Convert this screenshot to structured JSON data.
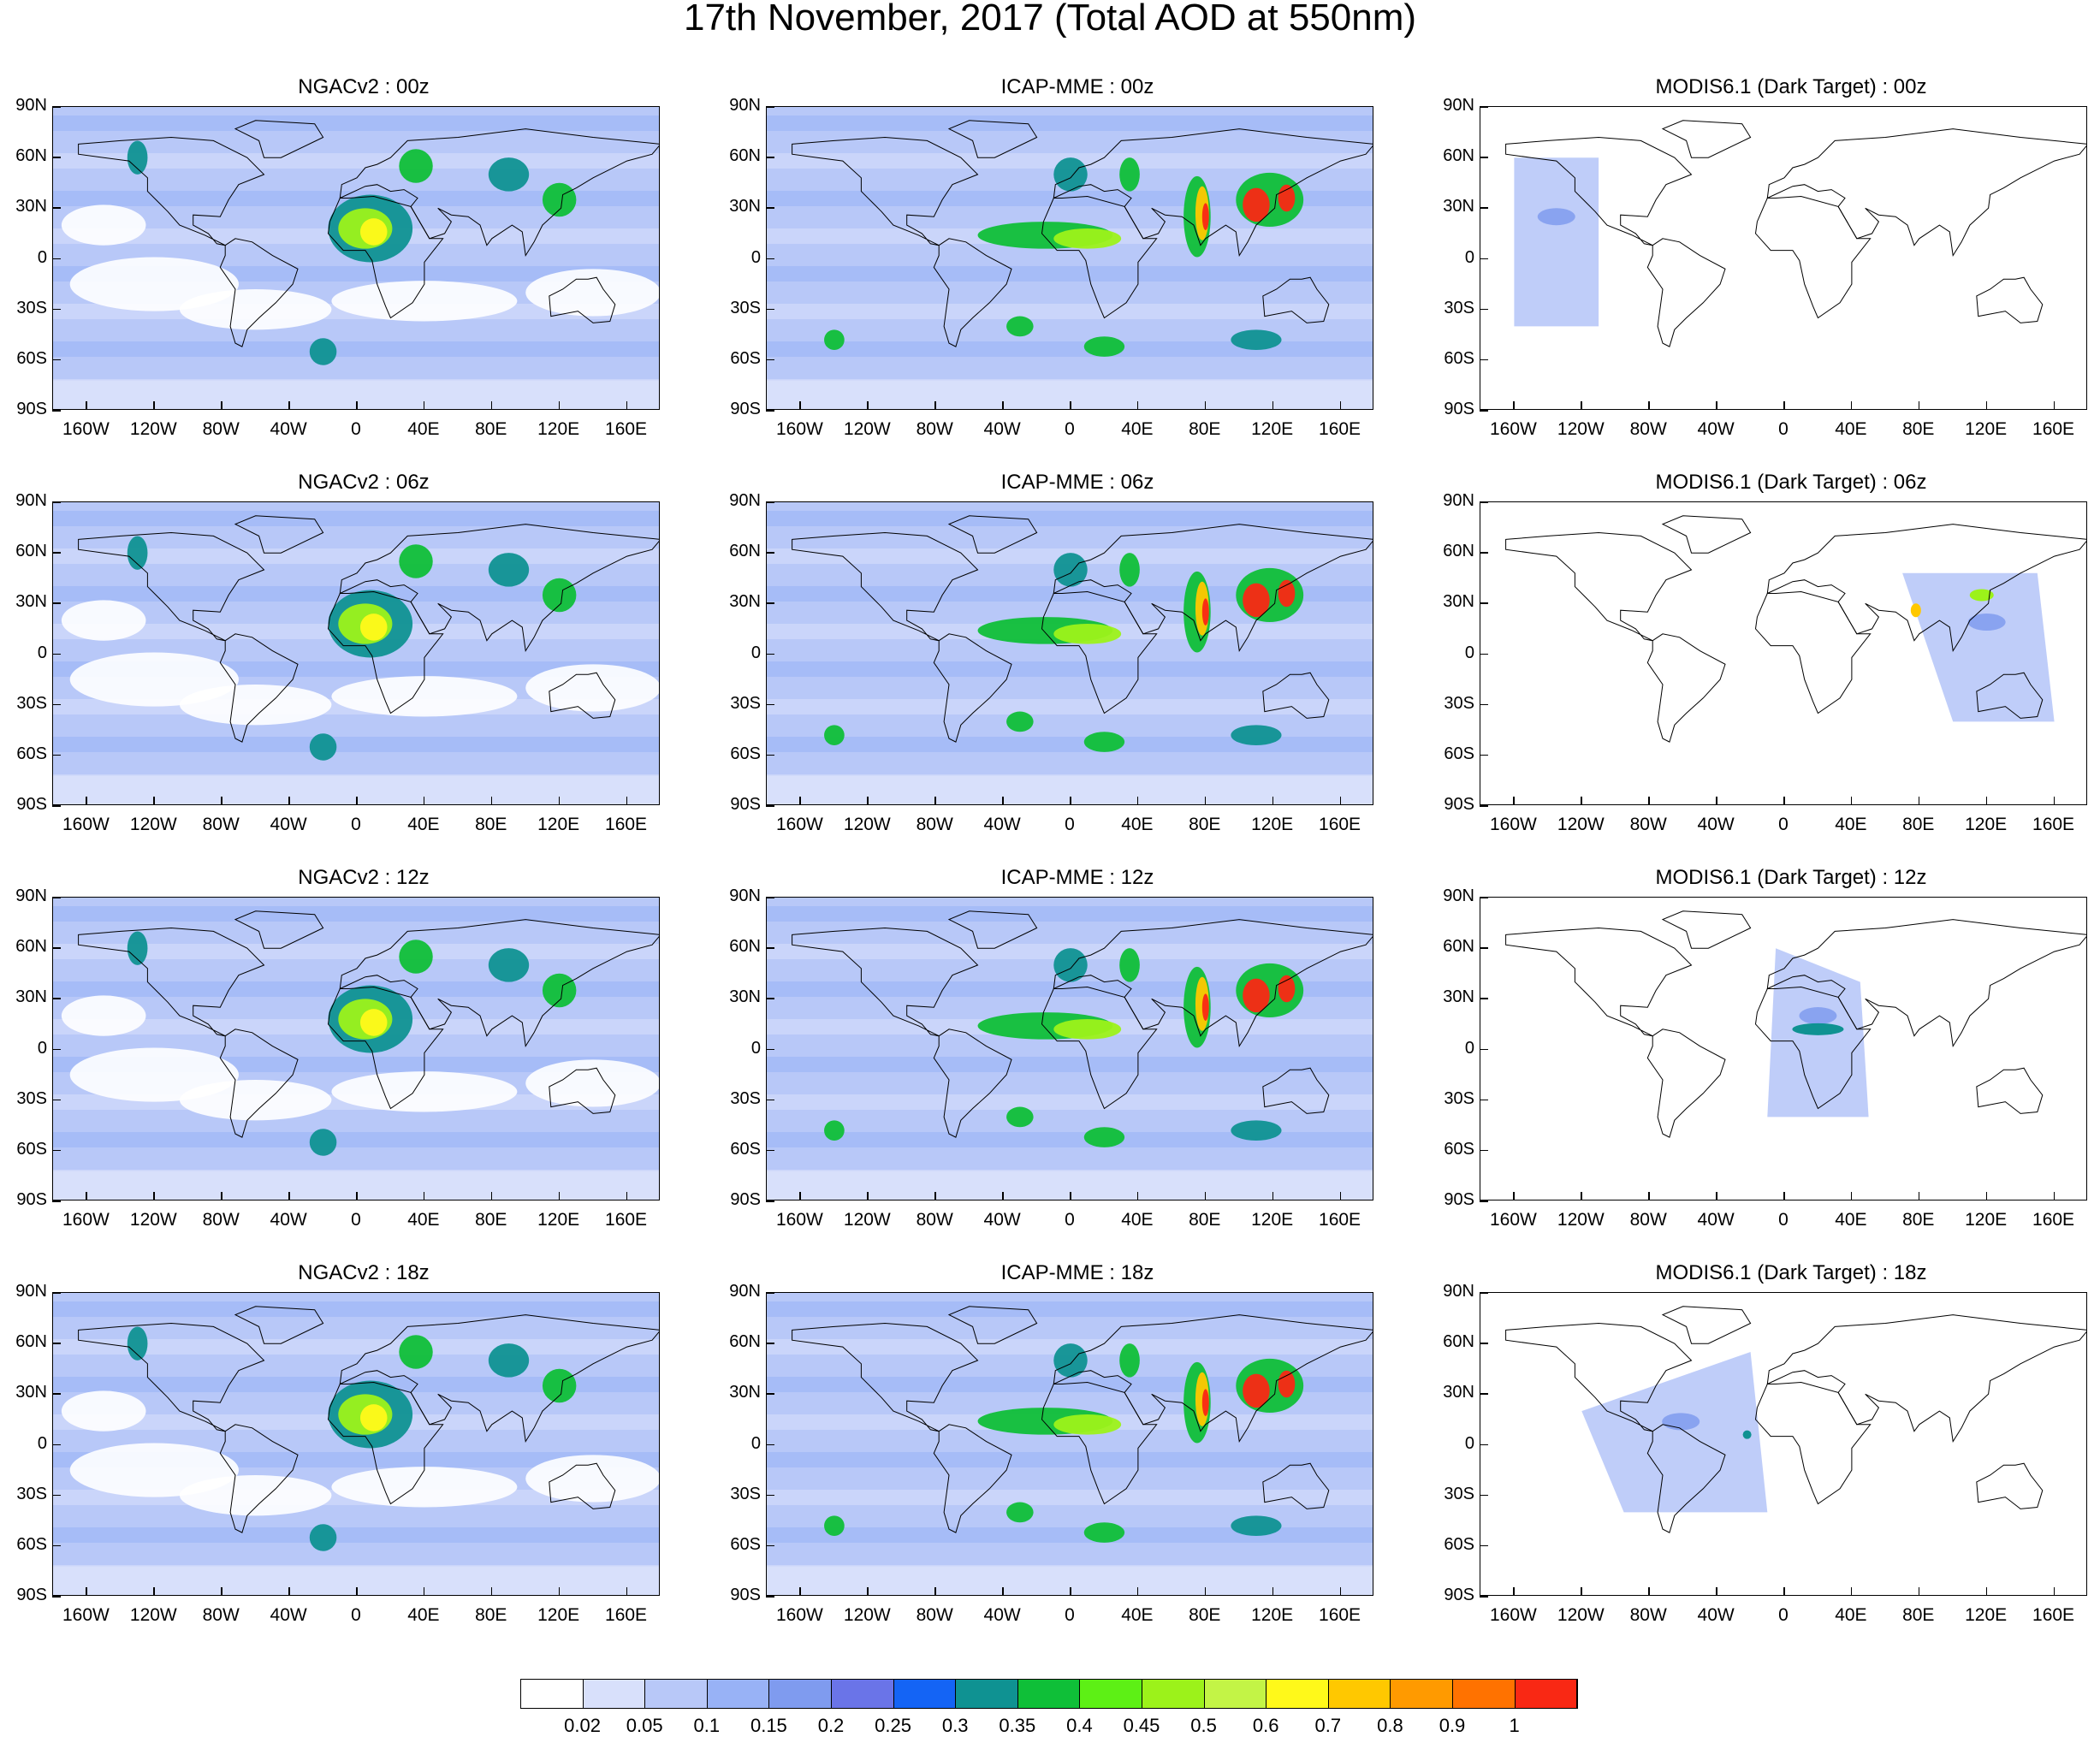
{
  "title": "17th November, 2017 (Total AOD at 550nm)",
  "panels": [
    {
      "title": "NGACv2 : 00z",
      "kind": "ngac"
    },
    {
      "title": "ICAP-MME : 00z",
      "kind": "icap"
    },
    {
      "title": "MODIS6.1 (Dark Target) : 00z",
      "kind": "modis",
      "swath": "00"
    },
    {
      "title": "NGACv2 : 06z",
      "kind": "ngac"
    },
    {
      "title": "ICAP-MME : 06z",
      "kind": "icap"
    },
    {
      "title": "MODIS6.1 (Dark Target) : 06z",
      "kind": "modis",
      "swath": "06"
    },
    {
      "title": "NGACv2 : 12z",
      "kind": "ngac"
    },
    {
      "title": "ICAP-MME : 12z",
      "kind": "icap"
    },
    {
      "title": "MODIS6.1 (Dark Target) : 12z",
      "kind": "modis",
      "swath": "12"
    },
    {
      "title": "NGACv2 : 18z",
      "kind": "ngac"
    },
    {
      "title": "ICAP-MME : 18z",
      "kind": "icap"
    },
    {
      "title": "MODIS6.1 (Dark Target) : 18z",
      "kind": "modis",
      "swath": "18"
    }
  ],
  "lat_labels": [
    "90N",
    "60N",
    "30N",
    "0",
    "30S",
    "60S",
    "90S"
  ],
  "lon_labels": [
    "160W",
    "120W",
    "80W",
    "40W",
    "0",
    "40E",
    "80E",
    "120E",
    "160E"
  ],
  "colorbar": {
    "colors": [
      "#ffffff",
      "#d8e0fb",
      "#b8c8f8",
      "#98b2f6",
      "#7f9bef",
      "#6a74e8",
      "#1464f5",
      "#0f9292",
      "#0fbf38",
      "#5df015",
      "#9cf21a",
      "#c3f446",
      "#fff91a",
      "#ffc800",
      "#ff9a00",
      "#ff7200",
      "#f92814"
    ],
    "labels": [
      "0.02",
      "0.05",
      "0.1",
      "0.15",
      "0.2",
      "0.25",
      "0.3",
      "0.35",
      "0.4",
      "0.45",
      "0.5",
      "0.6",
      "0.7",
      "0.8",
      "0.9",
      "1"
    ]
  }
}
